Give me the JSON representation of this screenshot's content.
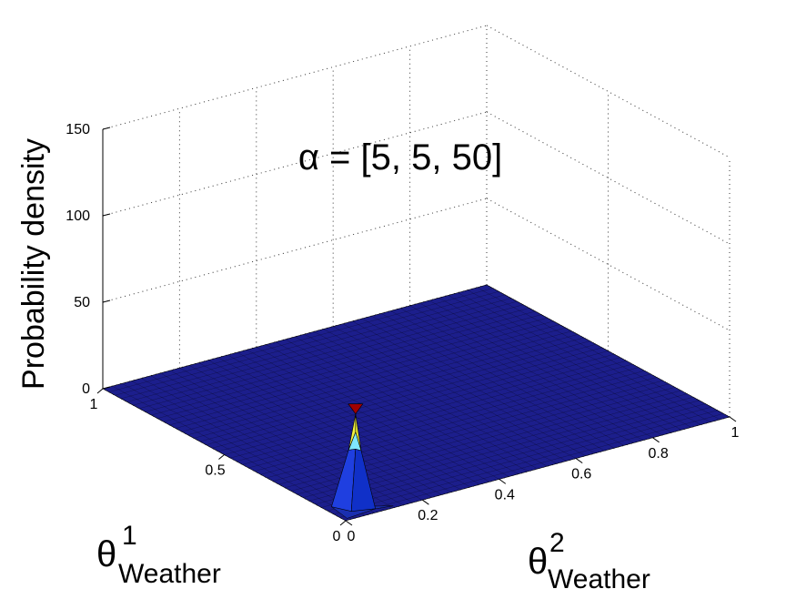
{
  "chart_data": {
    "type": "surface",
    "title": "α = [5, 5, 50]",
    "zlabel": "Probability density",
    "xlabel": {
      "symbol": "θ",
      "superscript": "2",
      "subscript": "Weather"
    },
    "ylabel": {
      "symbol": "θ",
      "superscript": "1",
      "subscript": "Weather"
    },
    "x_ticks": [
      "0",
      "0.2",
      "0.4",
      "0.6",
      "0.8",
      "1"
    ],
    "y_ticks": [
      "0",
      "0.5",
      "1"
    ],
    "z_ticks": [
      "0",
      "50",
      "100",
      "150"
    ],
    "xlim": [
      0,
      1
    ],
    "ylim": [
      0,
      1
    ],
    "zlim": [
      0,
      150
    ],
    "grid": true,
    "distribution": "dirichlet",
    "alpha": [
      5,
      5,
      50
    ],
    "peak": {
      "x": 0.07,
      "y": 0.07,
      "z": 58
    },
    "colormap": [
      "#00008f",
      "#0000ff",
      "#0080ff",
      "#00ffff",
      "#80ff80",
      "#ffff00",
      "#ff8000",
      "#ff0000",
      "#800000"
    ]
  }
}
